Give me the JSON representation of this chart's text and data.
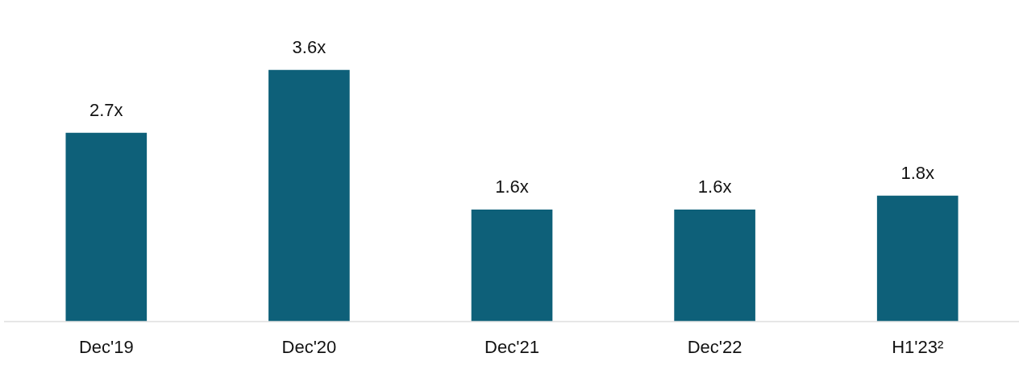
{
  "chart_data": {
    "type": "bar",
    "categories": [
      "Dec'19",
      "Dec'20",
      "Dec'21",
      "Dec'22",
      "H1'23²"
    ],
    "values": [
      2.7,
      3.6,
      1.6,
      1.6,
      1.8
    ],
    "value_labels": [
      "2.7x",
      "3.6x",
      "1.6x",
      "1.6x",
      "1.8x"
    ],
    "color": "#0e6079",
    "grid": false,
    "legend": false
  }
}
